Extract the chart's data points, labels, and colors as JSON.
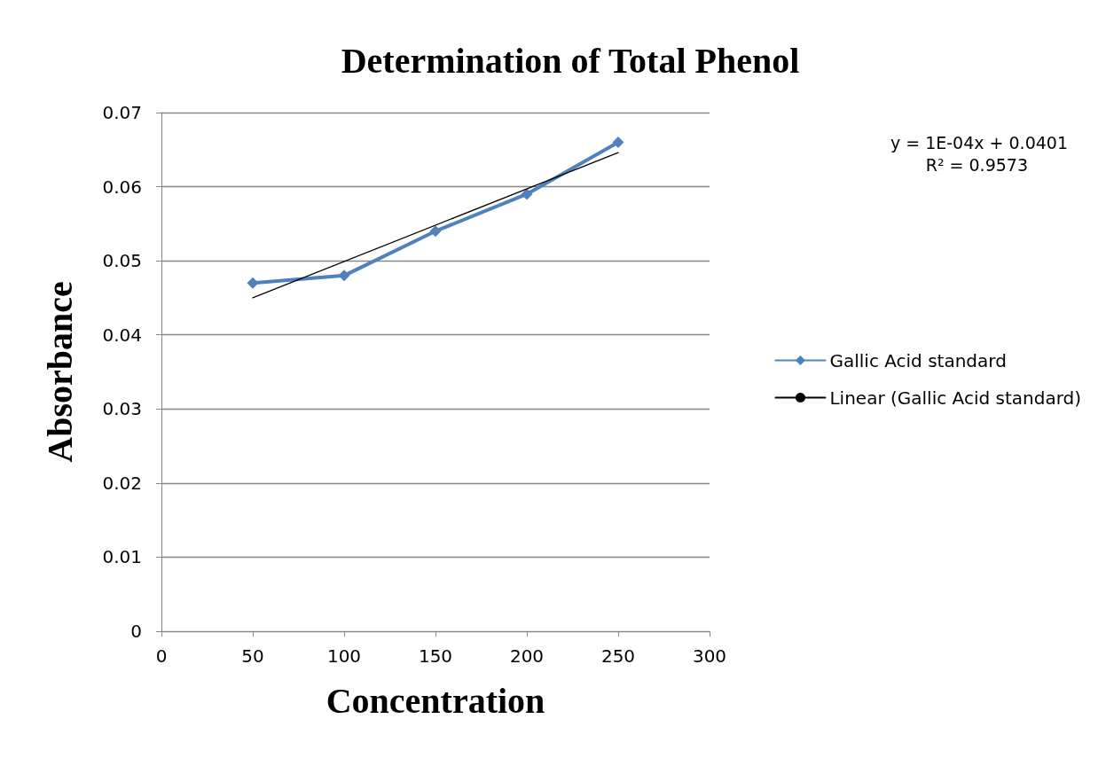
{
  "chart_data": {
    "type": "line",
    "title": "Determination of Total Phenol",
    "xlabel": "Concentration",
    "ylabel": "Absorbance",
    "x": [
      50,
      100,
      150,
      200,
      250
    ],
    "series": [
      {
        "name": "Gallic Acid standard",
        "color": "#4f81bd",
        "values": [
          0.047,
          0.048,
          0.054,
          0.059,
          0.066
        ],
        "marker": "diamond"
      },
      {
        "name": "Linear (Gallic Acid standard)",
        "color": "#000000",
        "type": "line",
        "x": [
          50,
          250
        ],
        "values": [
          0.045,
          0.0646
        ],
        "marker": "none"
      }
    ],
    "annotations": [
      "y = 1E-04x + 0.0401",
      "R² = 0.9573"
    ],
    "xlim": [
      0,
      300
    ],
    "xticks": [
      0,
      50,
      100,
      150,
      200,
      250,
      300
    ],
    "ylim": [
      0,
      0.07
    ],
    "yticks": [
      0,
      0.01,
      0.02,
      0.03,
      0.04,
      0.05,
      0.06,
      0.07
    ],
    "grid": "y",
    "legend": "right",
    "line_style": "solid"
  }
}
